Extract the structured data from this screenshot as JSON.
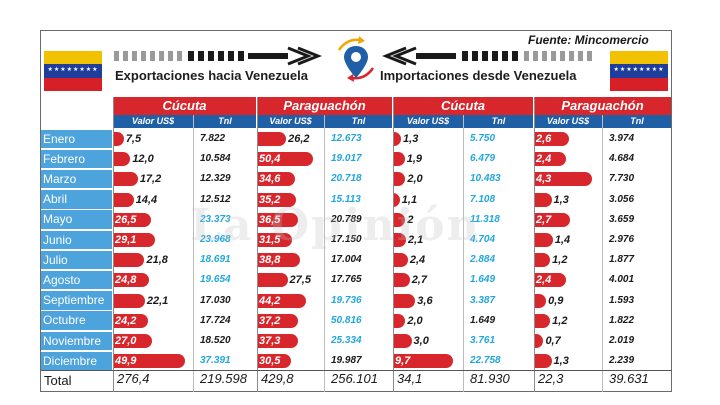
{
  "header": {
    "source": "Fuente: Mincomercio",
    "title_exports": "Exportaciones hacia Venezuela",
    "title_imports": "Importaciones desde Venezuela",
    "watermark": "La Opinión"
  },
  "colors": {
    "bar": "#d7262c",
    "month_bg": "#4da3dc",
    "subheader_bg": "#1f5fa6",
    "tnl_blue": "#23a6de"
  },
  "chart_data": {
    "type": "table",
    "groups": [
      {
        "key": "exp_cucuta",
        "flow": "Exportaciones hacia Venezuela",
        "label": "Cúcuta"
      },
      {
        "key": "exp_paraguachon",
        "flow": "Exportaciones hacia Venezuela",
        "label": "Paraguachón"
      },
      {
        "key": "imp_cucuta",
        "flow": "Importaciones desde Venezuela",
        "label": "Cúcuta"
      },
      {
        "key": "imp_paraguachon",
        "flow": "Importaciones desde Venezuela",
        "label": "Paraguachón"
      }
    ],
    "subcolumns": [
      "Valor US$",
      "Tnl"
    ],
    "months": [
      "Enero",
      "Febrero",
      "Marzo",
      "Abril",
      "Mayo",
      "Junio",
      "Julio",
      "Agosto",
      "Septiembre",
      "Octubre",
      "Noviembre",
      "Diciembre"
    ],
    "series": [
      {
        "group": "exp_cucuta",
        "valor": [
          "7,5",
          "12,0",
          "17,2",
          "14,4",
          "26,5",
          "29,1",
          "21,8",
          "24,8",
          "22,1",
          "24,2",
          "27,0",
          "49,9"
        ],
        "tnl": [
          "7.822",
          "10.584",
          "12.329",
          "12.512",
          "23.373",
          "23.968",
          "18.691",
          "19.654",
          "17.030",
          "17.724",
          "18.520",
          "37.391"
        ],
        "tnl_highlight": [
          false,
          false,
          false,
          false,
          true,
          true,
          true,
          true,
          false,
          false,
          false,
          true
        ]
      },
      {
        "group": "exp_paraguachon",
        "valor": [
          "26,2",
          "50,4",
          "34,6",
          "35,2",
          "36,5",
          "31,5",
          "38,8",
          "27,5",
          "44,2",
          "37,2",
          "37,3",
          "30,5"
        ],
        "tnl": [
          "12.673",
          "19.017",
          "20.718",
          "15.113",
          "20.789",
          "17.150",
          "17.004",
          "17.765",
          "19.736",
          "50.816",
          "25.334",
          "19.987"
        ],
        "tnl_highlight": [
          true,
          true,
          true,
          true,
          false,
          false,
          false,
          false,
          true,
          true,
          true,
          false
        ]
      },
      {
        "group": "imp_cucuta",
        "valor": [
          "1,3",
          "1,9",
          "2,0",
          "1,1",
          "2",
          "2,1",
          "2,4",
          "2,7",
          "3,6",
          "2,0",
          "3,0",
          "9,7"
        ],
        "tnl": [
          "5.750",
          "6.479",
          "10.483",
          "7.108",
          "11.318",
          "4.704",
          "2.884",
          "1.649",
          "3.387",
          "1.649",
          "3.761",
          "22.758"
        ],
        "tnl_highlight": [
          true,
          true,
          true,
          true,
          true,
          true,
          true,
          true,
          true,
          false,
          true,
          true
        ]
      },
      {
        "group": "imp_paraguachon",
        "valor": [
          "2,6",
          "2,4",
          "4,3",
          "1,3",
          "2,7",
          "1,4",
          "1,2",
          "2,4",
          "0,9",
          "1,2",
          "0,7",
          "1,3"
        ],
        "tnl": [
          "3.974",
          "4.684",
          "7.730",
          "3.056",
          "3.659",
          "2.976",
          "1.877",
          "4.001",
          "1.593",
          "1.822",
          "2.019",
          "2.239"
        ],
        "tnl_highlight": [
          false,
          false,
          false,
          false,
          false,
          false,
          false,
          false,
          false,
          false,
          false,
          false
        ]
      }
    ],
    "totals": {
      "label": "Total",
      "values": [
        "276,4",
        "219.598",
        "429,8",
        "256.101",
        "34,1",
        "81.930",
        "22,3",
        "39.631"
      ]
    }
  }
}
